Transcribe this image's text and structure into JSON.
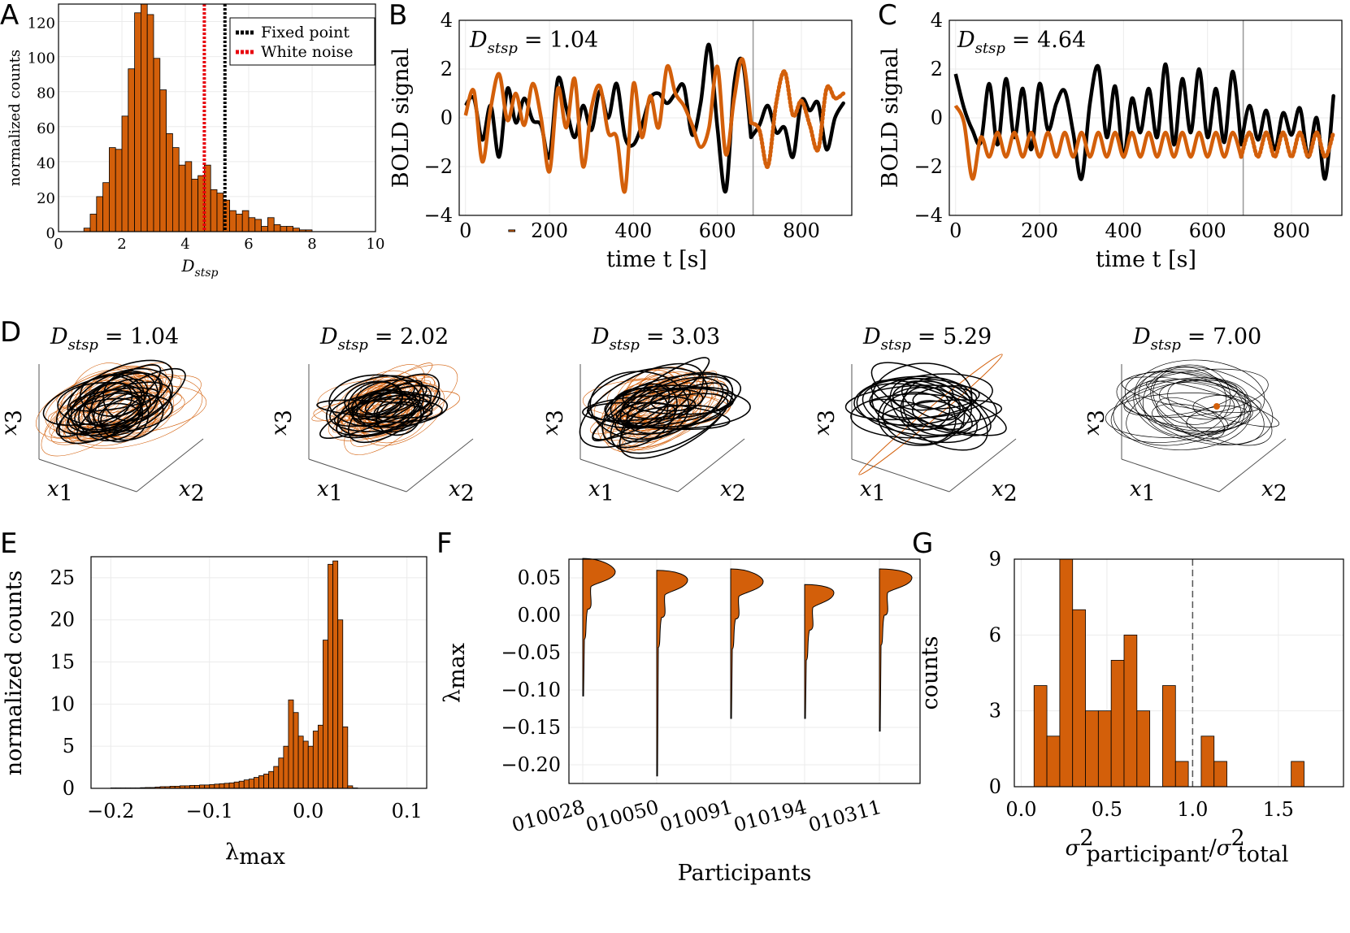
{
  "colors": {
    "orange": "#d35f0a",
    "black": "#000000",
    "red": "#e8000b",
    "grid": "#ebebeb"
  },
  "panels": {
    "A": "A",
    "B": "B",
    "C": "C",
    "D": "D",
    "E": "E",
    "F": "F",
    "G": "G"
  },
  "chart_data": [
    {
      "id": "A",
      "type": "bar",
      "xlabel": "D",
      "xlabel_sub": "stsp",
      "ylabel": "normalized counts",
      "xlim": [
        0,
        10
      ],
      "ylim": [
        0,
        130
      ],
      "xticks": [
        "0",
        "2",
        "4",
        "6",
        "8",
        "10"
      ],
      "yticks": [
        "0",
        "20",
        "40",
        "60",
        "80",
        "100",
        "120"
      ],
      "bin_width": 0.2,
      "bin_start": 0.8,
      "values": [
        2,
        10,
        20,
        28,
        48,
        47,
        66,
        93,
        125,
        130,
        124,
        99,
        81,
        56,
        48,
        38,
        40,
        30,
        32,
        38,
        24,
        22,
        18,
        12,
        10,
        12,
        8,
        7,
        3,
        8,
        4,
        3,
        3,
        2,
        1,
        1,
        0,
        0,
        0,
        0,
        0,
        0,
        0,
        0,
        0,
        0,
        0,
        0,
        0,
        0,
        0,
        0,
        0,
        0,
        0,
        0,
        0,
        0,
        0,
        0,
        0,
        0,
        0,
        0,
        0,
        0,
        0,
        1,
        0,
        0,
        0,
        0
      ],
      "vlines": [
        {
          "x": 4.6,
          "name": "White noise",
          "color": "#e8000b"
        },
        {
          "x": 5.25,
          "name": "Fixed point",
          "color": "#000000"
        }
      ],
      "legend": [
        "Fixed point",
        "White noise"
      ],
      "legend_position": "top-right"
    },
    {
      "id": "B",
      "type": "line",
      "annotation": "= 1.04",
      "annotation_sym": "D",
      "annotation_sub": "stsp",
      "xlabel": "time t [s]",
      "ylabel": "BOLD signal",
      "xlim": [
        -15,
        920
      ],
      "ylim": [
        -4,
        4
      ],
      "xticks": [
        "0",
        "200",
        "400",
        "600",
        "800"
      ],
      "yticks": [
        "−4",
        "−2",
        "0",
        "2",
        "4"
      ],
      "split_t": 685,
      "series": [
        {
          "color": "#000000",
          "t": [
            0,
            20,
            40,
            60,
            80,
            100,
            120,
            140,
            160,
            180,
            200,
            220,
            240,
            260,
            280,
            300,
            320,
            340,
            360,
            380,
            400,
            420,
            440,
            460,
            480,
            500,
            520,
            540,
            560,
            580,
            600,
            620,
            640,
            660,
            680,
            700,
            720,
            740,
            760,
            780,
            800,
            820,
            840,
            860,
            880,
            900
          ],
          "y": [
            0.5,
            0.8,
            -0.9,
            0.5,
            -1.6,
            1.2,
            -0.2,
            0.8,
            -0.1,
            -0.3,
            -1.6,
            1.6,
            0.4,
            -0.8,
            0.5,
            -0.5,
            1.1,
            0.0,
            1.4,
            -0.8,
            -1.1,
            -0.3,
            0.8,
            1.0,
            0.6,
            1.0,
            1.3,
            -0.7,
            0.6,
            3.0,
            -0.4,
            -3.0,
            1.4,
            2.3,
            -0.8,
            -0.3,
            0.5,
            -0.6,
            -0.4,
            -1.6,
            0.7,
            0.3,
            0.6,
            -1.3,
            0.0,
            0.6
          ]
        },
        {
          "color": "#d35f0a",
          "t": [
            0,
            20,
            40,
            60,
            80,
            100,
            120,
            140,
            160,
            180,
            200,
            220,
            240,
            260,
            280,
            300,
            320,
            340,
            360,
            380,
            400,
            420,
            440,
            460,
            480,
            500,
            520,
            540,
            560,
            580,
            600,
            620,
            640,
            660,
            680,
            700,
            720,
            740,
            760,
            780,
            800,
            820,
            840,
            860,
            880,
            900
          ],
          "y": [
            0.1,
            1.1,
            -1.8,
            0.4,
            1.8,
            -0.1,
            1.0,
            -0.3,
            1.4,
            0.0,
            -2.2,
            1.2,
            -0.4,
            1.6,
            -2.0,
            0.4,
            1.3,
            -0.6,
            -0.8,
            -3.0,
            1.4,
            -0.8,
            0.9,
            -0.4,
            2.1,
            1.0,
            0.5,
            -0.3,
            -1.2,
            -0.4,
            2.1,
            -1.5,
            0.8,
            2.4,
            -0.2,
            -0.5,
            -2.0,
            0.6,
            1.9,
            0.1,
            0.7,
            -0.3,
            -1.3,
            1.2,
            0.8,
            1.0
          ]
        }
      ]
    },
    {
      "id": "C",
      "type": "line",
      "annotation": "= 4.64",
      "annotation_sym": "D",
      "annotation_sub": "stsp",
      "xlabel": "time t [s]",
      "ylabel": "BOLD signal",
      "xlim": [
        -15,
        920
      ],
      "ylim": [
        -4,
        4
      ],
      "xticks": [
        "0",
        "200",
        "400",
        "600",
        "800"
      ],
      "yticks": [
        "−4",
        "−2",
        "0",
        "2",
        "4"
      ],
      "split_t": 685,
      "series": [
        {
          "color": "#000000",
          "t": [
            0,
            20,
            40,
            60,
            80,
            100,
            120,
            140,
            160,
            180,
            200,
            220,
            240,
            260,
            280,
            300,
            320,
            340,
            360,
            380,
            400,
            420,
            440,
            460,
            480,
            500,
            520,
            540,
            560,
            580,
            600,
            620,
            640,
            660,
            680,
            700,
            720,
            740,
            760,
            780,
            800,
            820,
            840,
            860,
            880,
            900
          ],
          "y": [
            1.8,
            0.4,
            -0.5,
            -1.0,
            1.4,
            -1.1,
            1.6,
            -0.8,
            1.2,
            -1.3,
            1.4,
            -0.5,
            0.6,
            1.1,
            -0.6,
            -2.5,
            0.6,
            2.1,
            -0.8,
            1.3,
            -1.6,
            0.8,
            -0.6,
            1.2,
            -0.8,
            2.2,
            -1.1,
            1.6,
            -0.6,
            2.0,
            -0.8,
            1.2,
            -1.0,
            1.9,
            -1.1,
            0.5,
            -0.9,
            0.3,
            -1.3,
            0.2,
            -0.7,
            0.4,
            -1.6,
            0.0,
            -2.5,
            0.9
          ]
        },
        {
          "color": "#d35f0a",
          "t": [
            0,
            20,
            40,
            60,
            80,
            100,
            120,
            140,
            160,
            180,
            200,
            220,
            240,
            260,
            280,
            300,
            320,
            340,
            360,
            380,
            400,
            420,
            440,
            460,
            480,
            500,
            520,
            540,
            560,
            580,
            600,
            620,
            640,
            660,
            680,
            700,
            720,
            740,
            760,
            780,
            800,
            820,
            840,
            860,
            880,
            900
          ],
          "y": [
            0.5,
            -0.2,
            -2.5,
            -0.8,
            -1.6,
            -0.6,
            -1.6,
            -0.6,
            -1.6,
            -0.6,
            -1.6,
            -0.6,
            -1.6,
            -0.6,
            -1.6,
            -0.6,
            -1.6,
            -0.6,
            -1.6,
            -0.6,
            -1.6,
            -0.6,
            -1.6,
            -0.6,
            -1.6,
            -0.6,
            -1.6,
            -0.6,
            -1.6,
            -0.6,
            -1.6,
            -0.6,
            -1.6,
            -0.6,
            -1.6,
            -0.6,
            -1.6,
            -0.6,
            -1.6,
            -0.6,
            -1.6,
            -0.6,
            -1.6,
            -0.6,
            -1.6,
            -0.6
          ]
        }
      ]
    },
    {
      "id": "D",
      "type": "other",
      "xlabel": "x1",
      "ylabel": "x2",
      "zlabel": "x3",
      "axis_sym": "x",
      "sub1": "1",
      "sub2": "2",
      "sub3": "3",
      "panels": [
        {
          "value": "= 1.04",
          "sym": "D",
          "sub": "stsp",
          "orange_spread": 1.0,
          "black_spread": 0.9
        },
        {
          "value": "= 2.02",
          "sym": "D",
          "sub": "stsp",
          "orange_spread": 0.85,
          "black_spread": 0.8
        },
        {
          "value": "= 3.03",
          "sym": "D",
          "sub": "stsp",
          "orange_spread": 0.9,
          "black_spread": 1.0
        },
        {
          "value": "= 5.29",
          "sym": "D",
          "sub": "stsp",
          "orange_spread": 0.1,
          "black_spread": 1.0
        },
        {
          "value": "= 7.00",
          "sym": "D",
          "sub": "stsp",
          "orange_spread": 0.03,
          "black_spread": 1.1
        }
      ]
    },
    {
      "id": "E",
      "type": "bar",
      "xlabel": "λ",
      "xlabel_sub": "max",
      "ylabel": "normalized counts",
      "xlim": [
        -0.22,
        0.12
      ],
      "ylim": [
        0,
        27.5
      ],
      "xticks": [
        "−0.2",
        "−0.1",
        "0.0",
        "0.1"
      ],
      "yticks": [
        "0",
        "5",
        "10",
        "15",
        "20",
        "25"
      ],
      "bin_start": -0.2,
      "bin_width": 0.005,
      "values": [
        0.05,
        0.05,
        0.05,
        0.05,
        0.05,
        0.05,
        0.08,
        0.1,
        0.1,
        0.15,
        0.2,
        0.2,
        0.25,
        0.25,
        0.3,
        0.3,
        0.35,
        0.35,
        0.4,
        0.4,
        0.45,
        0.5,
        0.55,
        0.6,
        0.65,
        0.75,
        0.85,
        1.0,
        1.1,
        1.3,
        1.5,
        1.7,
        2.0,
        2.6,
        3.6,
        5.0,
        10.5,
        9.0,
        6.2,
        5.6,
        5.0,
        6.8,
        7.5,
        17.6,
        26.6,
        27.0,
        20.0,
        7.3,
        0.3,
        0.05
      ]
    },
    {
      "id": "F",
      "type": "other",
      "xlabel": "Participants",
      "ylabel": "λ",
      "ylabel_sub": "max",
      "ylim": [
        -0.225,
        0.075
      ],
      "yticks": [
        "0.05",
        "0.00",
        "−0.05",
        "−0.10",
        "−0.15",
        "−0.20"
      ],
      "categories": [
        "010028",
        "010050",
        "010091",
        "010194",
        "010311"
      ],
      "violins": [
        {
          "min": -0.108,
          "max": 0.076,
          "peak": 0.058,
          "width": 1.0
        },
        {
          "min": -0.215,
          "max": 0.06,
          "peak": 0.047,
          "width": 0.95
        },
        {
          "min": -0.138,
          "max": 0.062,
          "peak": 0.045,
          "width": 1.0
        },
        {
          "min": -0.138,
          "max": 0.041,
          "peak": 0.03,
          "width": 0.9
        },
        {
          "min": -0.155,
          "max": 0.062,
          "peak": 0.05,
          "width": 1.0
        }
      ]
    },
    {
      "id": "G",
      "type": "bar",
      "xlabel": "σ²participant/σ²total",
      "xlabel_num": "participant",
      "xlabel_den": "total",
      "ylabel": "counts",
      "xlim": [
        -0.04,
        1.88
      ],
      "ylim": [
        0,
        9
      ],
      "xticks": [
        "0.0",
        "0.5",
        "1.0",
        "1.5"
      ],
      "yticks": [
        "0",
        "3",
        "6",
        "9"
      ],
      "bin_start": 0.075,
      "bin_width": 0.075,
      "values": [
        4,
        2,
        9,
        7,
        3,
        3,
        5,
        6,
        3,
        0,
        4,
        1,
        0,
        2,
        1,
        0,
        0,
        0,
        0,
        0,
        1
      ],
      "vline": 1.0
    }
  ]
}
